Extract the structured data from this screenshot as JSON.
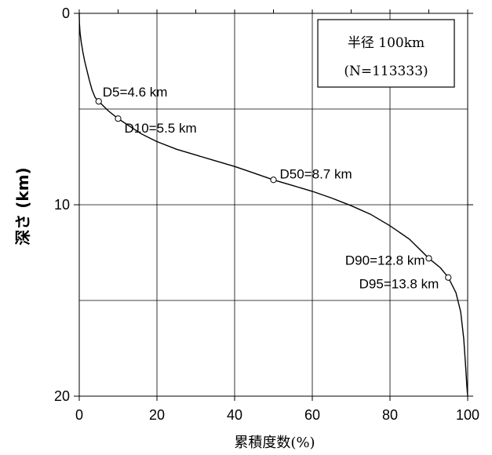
{
  "chart_data": {
    "type": "line",
    "xlabel": "累積度数(%)",
    "ylabel": "深さ (km)",
    "xlim": [
      0,
      100
    ],
    "ylim": [
      20,
      0
    ],
    "y_inverted": true,
    "grid": true,
    "x_ticks": [
      0,
      20,
      40,
      60,
      80,
      100
    ],
    "y_ticks": [
      0,
      10,
      20
    ],
    "legend_box": {
      "line1": "半径 100km",
      "line2": "(N=113333)",
      "placement": "top-right"
    },
    "series": [
      {
        "values_note": "cumulative frequency (%) vs depth (km)",
        "points": [
          [
            0.0,
            0.0
          ],
          [
            0.05,
            0.5
          ],
          [
            0.2,
            1.0
          ],
          [
            0.5,
            1.5
          ],
          [
            0.9,
            2.0
          ],
          [
            1.4,
            2.5
          ],
          [
            2.0,
            3.0
          ],
          [
            2.6,
            3.5
          ],
          [
            3.3,
            4.0
          ],
          [
            4.1,
            4.4
          ],
          [
            5.0,
            4.6
          ],
          [
            7.5,
            5.1
          ],
          [
            10.0,
            5.5
          ],
          [
            13.0,
            5.9
          ],
          [
            16.0,
            6.3
          ],
          [
            20.0,
            6.7
          ],
          [
            25.0,
            7.1
          ],
          [
            30.0,
            7.4
          ],
          [
            35.0,
            7.7
          ],
          [
            40.0,
            8.0
          ],
          [
            45.0,
            8.35
          ],
          [
            50.0,
            8.7
          ],
          [
            55.0,
            9.0
          ],
          [
            60.0,
            9.3
          ],
          [
            65.0,
            9.65
          ],
          [
            70.0,
            10.05
          ],
          [
            75.0,
            10.5
          ],
          [
            80.0,
            11.1
          ],
          [
            85.0,
            11.8
          ],
          [
            90.0,
            12.8
          ],
          [
            93.0,
            13.3
          ],
          [
            95.0,
            13.8
          ],
          [
            97.0,
            14.6
          ],
          [
            98.2,
            15.6
          ],
          [
            99.0,
            17.0
          ],
          [
            99.5,
            18.5
          ],
          [
            99.8,
            19.5
          ],
          [
            100.0,
            20.0
          ]
        ]
      }
    ],
    "markers": [
      {
        "x": 5,
        "y": 4.6,
        "label": "D5=4.6 km"
      },
      {
        "x": 10,
        "y": 5.5,
        "label": "D10=5.5 km"
      },
      {
        "x": 50,
        "y": 8.7,
        "label": "D50=8.7 km"
      },
      {
        "x": 90,
        "y": 12.8,
        "label": "D90=12.8 km"
      },
      {
        "x": 95,
        "y": 13.8,
        "label": "D95=13.8 km"
      }
    ]
  }
}
